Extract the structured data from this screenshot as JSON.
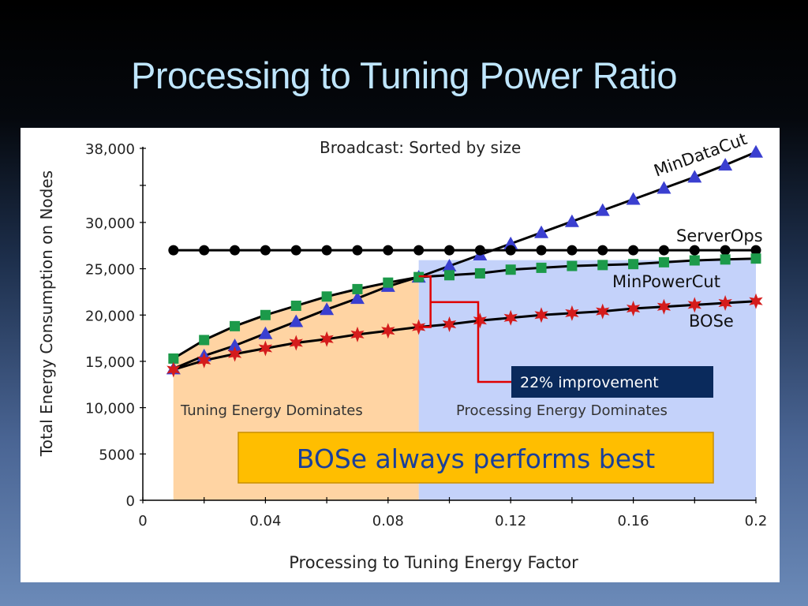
{
  "slide": {
    "title": "Processing to Tuning Power Ratio"
  },
  "chart_data": {
    "type": "line",
    "title": "Broadcast: Sorted by size",
    "xlabel": "Processing to Tuning Energy Factor",
    "ylabel": "Total Energy Consumption on Nodes",
    "xlim": [
      0,
      0.2
    ],
    "ylim": [
      0,
      38000
    ],
    "xticks": [
      "0",
      "0.04",
      "0.08",
      "0.12",
      "0.16",
      "0.2"
    ],
    "yticks": [
      "0",
      "5000",
      "10,000",
      "15,000",
      "20,000",
      "25,000",
      "30,000",
      "38,000"
    ],
    "x": [
      0.01,
      0.02,
      0.03,
      0.04,
      0.05,
      0.06,
      0.07,
      0.08,
      0.09,
      0.1,
      0.11,
      0.12,
      0.13,
      0.14,
      0.15,
      0.16,
      0.17,
      0.18,
      0.19,
      0.2
    ],
    "series": [
      {
        "name": "MinDataCut",
        "color": "#3a3fd0",
        "marker": "triangle",
        "values": [
          14200,
          15600,
          16700,
          18000,
          19300,
          20600,
          21800,
          23100,
          24100,
          25300,
          26500,
          27700,
          28900,
          30100,
          31300,
          32500,
          33700,
          34900,
          36200,
          37600
        ]
      },
      {
        "name": "ServerOps",
        "color": "#000000",
        "marker": "circle",
        "values": [
          27000,
          27000,
          27000,
          27000,
          27000,
          27000,
          27000,
          27000,
          27000,
          27000,
          27000,
          27000,
          27000,
          27000,
          27000,
          27000,
          27000,
          27000,
          27000,
          27000
        ]
      },
      {
        "name": "MinPowerCut",
        "color": "#1c9a4a",
        "marker": "square",
        "values": [
          15300,
          17300,
          18800,
          20000,
          21000,
          22000,
          22800,
          23500,
          24100,
          24300,
          24500,
          24900,
          25100,
          25300,
          25400,
          25500,
          25700,
          25900,
          26000,
          26100
        ]
      },
      {
        "name": "BOSe",
        "color": "#d41c1c",
        "marker": "star",
        "values": [
          14100,
          15100,
          15800,
          16400,
          17000,
          17400,
          17900,
          18300,
          18700,
          19000,
          19400,
          19700,
          20000,
          20200,
          20400,
          20700,
          20900,
          21100,
          21300,
          21500
        ]
      }
    ],
    "regions": [
      {
        "label": "Tuning Energy Dominates",
        "x0": 0.01,
        "x1": 0.09,
        "color": "#ffd4a3"
      },
      {
        "label": "Processing Energy Dominates",
        "x0": 0.09,
        "x1": 0.2,
        "color": "#c4d2fa"
      }
    ],
    "annotations": {
      "improvement": "22% improvement",
      "callout": "BOSe always performs best"
    }
  }
}
